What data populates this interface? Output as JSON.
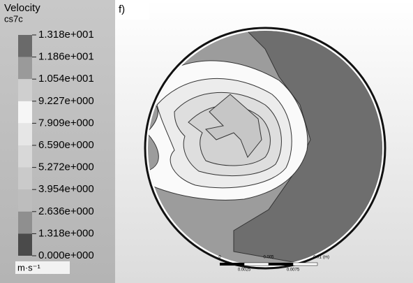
{
  "legend": {
    "title": "Velocity",
    "subtitle": "cs7c",
    "levels": [
      "1.318e+001",
      "1.186e+001",
      "1.054e+001",
      "9.227e+000",
      "7.909e+000",
      "6.590e+000",
      "5.272e+000",
      "3.954e+000",
      "2.636e+000",
      "1.318e+000",
      "0.000e+000"
    ],
    "unit": "m·s⁻¹"
  },
  "panel_label": "f)",
  "scale_bar": {
    "ticks": [
      "0",
      "0.005",
      "0.01"
    ],
    "unit": "(m)",
    "sub_ticks": [
      "0.0025",
      "0.0075"
    ]
  }
}
